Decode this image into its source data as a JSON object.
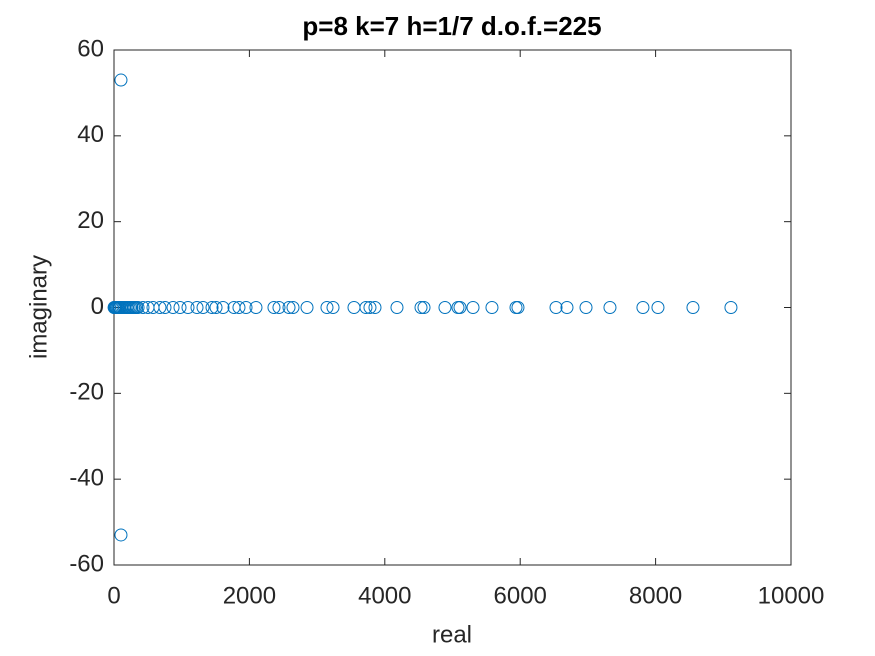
{
  "chart_data": {
    "type": "scatter",
    "title": "p=8 k=7 h=1/7 d.o.f.=225",
    "xlabel": "real",
    "ylabel": "imaginary",
    "series": [
      {
        "color": "#0072bd",
        "x": [
          103,
          103,
          2,
          5,
          10,
          15,
          22,
          30,
          44,
          60,
          75,
          89,
          110,
          133,
          155,
          177,
          200,
          222,
          244,
          266,
          290,
          310,
          333,
          355,
          428,
          502,
          576,
          679,
          753,
          872,
          975,
          1093,
          1226,
          1315,
          1448,
          1507,
          1610,
          1773,
          1846,
          1950,
          2097,
          2363,
          2437,
          2585,
          2644,
          2851,
          3146,
          3235,
          3545,
          3722,
          3781,
          3855,
          4180,
          4535,
          4579,
          4889,
          5081,
          5111,
          5303,
          5583,
          5938,
          5967,
          6529,
          6691,
          6972,
          7326,
          7813,
          8035,
          8552,
          9113
        ],
        "values": [
          53,
          -53,
          0,
          0,
          0,
          0,
          0,
          0,
          0,
          0,
          0,
          0,
          0,
          0,
          0,
          0,
          0,
          0,
          0,
          0,
          0,
          0,
          0,
          0,
          0,
          0,
          0,
          0,
          0,
          0,
          0,
          0,
          0,
          0,
          0,
          0,
          0,
          0,
          0,
          0,
          0,
          0,
          0,
          0,
          0,
          0,
          0,
          0,
          0,
          0,
          0,
          0,
          0,
          0,
          0,
          0,
          0,
          0,
          0,
          0,
          0,
          0,
          0,
          0,
          0,
          0,
          0,
          0,
          0,
          0
        ]
      }
    ],
    "xlim": [
      0,
      10000
    ],
    "xticks": [
      0,
      2000,
      4000,
      6000,
      8000,
      10000
    ],
    "ylim": [
      -60,
      60
    ],
    "yticks": [
      -60,
      -40,
      -20,
      0,
      20,
      40,
      60
    ],
    "grid": false
  }
}
